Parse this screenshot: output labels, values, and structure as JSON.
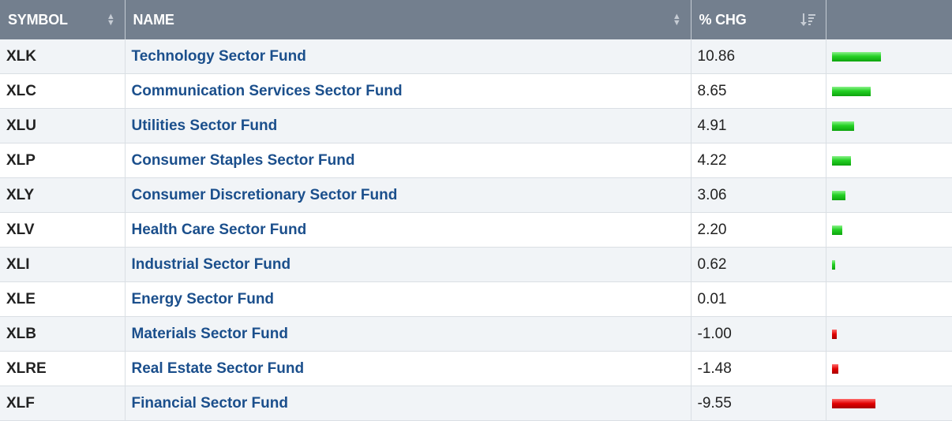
{
  "header": {
    "symbol": "SYMBOL",
    "name": "NAME",
    "chg": "% CHG"
  },
  "rows": [
    {
      "symbol": "XLK",
      "name": "Technology Sector Fund",
      "chg": "10.86",
      "value": 10.86
    },
    {
      "symbol": "XLC",
      "name": "Communication Services Sector Fund",
      "chg": "8.65",
      "value": 8.65
    },
    {
      "symbol": "XLU",
      "name": "Utilities Sector Fund",
      "chg": "4.91",
      "value": 4.91
    },
    {
      "symbol": "XLP",
      "name": "Consumer Staples Sector Fund",
      "chg": "4.22",
      "value": 4.22
    },
    {
      "symbol": "XLY",
      "name": "Consumer Discretionary Sector Fund",
      "chg": "3.06",
      "value": 3.06
    },
    {
      "symbol": "XLV",
      "name": "Health Care Sector Fund",
      "chg": "2.20",
      "value": 2.2
    },
    {
      "symbol": "XLI",
      "name": "Industrial Sector Fund",
      "chg": "0.62",
      "value": 0.62
    },
    {
      "symbol": "XLE",
      "name": "Energy Sector Fund",
      "chg": "0.01",
      "value": 0.01
    },
    {
      "symbol": "XLB",
      "name": "Materials Sector Fund",
      "chg": "-1.00",
      "value": -1.0
    },
    {
      "symbol": "XLRE",
      "name": "Real Estate Sector Fund",
      "chg": "-1.48",
      "value": -1.48
    },
    {
      "symbol": "XLF",
      "name": "Financial Sector Fund",
      "chg": "-9.55",
      "value": -9.55
    }
  ],
  "colors": {
    "header_bg": "#737f8e",
    "link": "#1b4f8c",
    "positive_bar": "#1ec81e",
    "negative_bar": "#d40000"
  },
  "icons": {
    "symbol_sort": "sort-both-icon",
    "name_sort": "sort-both-icon",
    "chg_sort": "sort-descending-icon"
  }
}
